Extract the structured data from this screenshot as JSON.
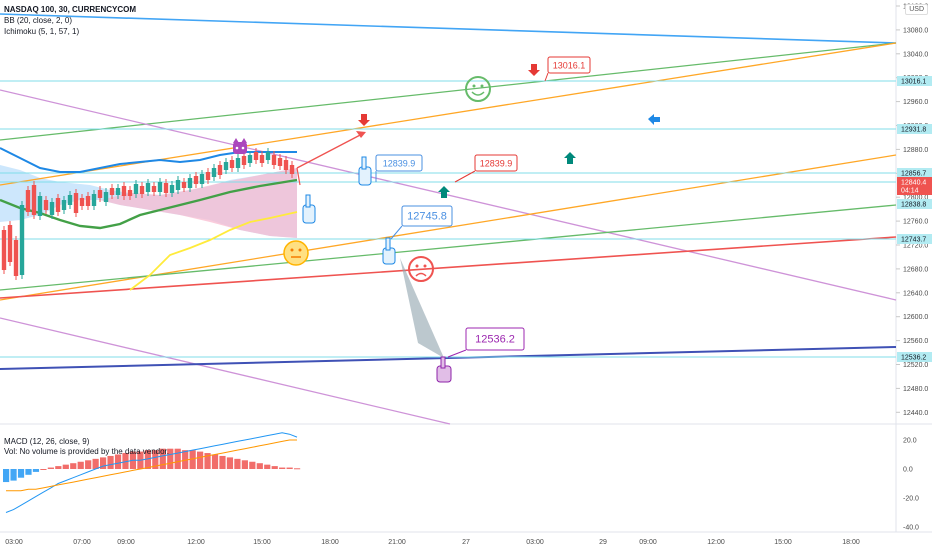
{
  "header": {
    "symbol": "NASDAQ 100, 30, CURRENCYCOM",
    "bb": "BB (20, close, 2, 0)",
    "ichimoku": "Ichimoku (5, 1, 57, 1)",
    "currency": "USD"
  },
  "macd_header": {
    "title": "MACD (12, 26, close, 9)",
    "vol": "Vol: No volume is provided by the data vendor."
  },
  "chart_data": {
    "type": "line",
    "main_panel": {
      "y_axis": {
        "ticks": [
          "13120.0",
          "13080.0",
          "13040.0",
          "13000.0",
          "12960.0",
          "12920.0",
          "12880.0",
          "12840.0",
          "12800.0",
          "12760.0",
          "12720.0",
          "12680.0",
          "12640.0",
          "12600.0",
          "12560.0",
          "12520.0",
          "12480.0",
          "12440.0"
        ]
      },
      "price_tags": [
        {
          "label": "13016.1",
          "color": "#b2ebf2",
          "text_color": "#131722"
        },
        {
          "label": "12931.8",
          "color": "#b2ebf2",
          "text_color": "#131722"
        },
        {
          "label": "12856.7",
          "color": "#b2ebf2",
          "text_color": "#131722"
        },
        {
          "label": "12840.4",
          "sub": "04:14",
          "color": "#ef5350",
          "text_color": "#ffffff"
        },
        {
          "label": "12838.8",
          "color": "#b2ebf2",
          "text_color": "#131722"
        },
        {
          "label": "12743.7",
          "color": "#b2ebf2",
          "text_color": "#131722"
        },
        {
          "label": "12536.2",
          "color": "#b2ebf2",
          "text_color": "#131722"
        }
      ],
      "callouts": [
        {
          "label": "13016.1",
          "color": "#e53935"
        },
        {
          "label": "12839.9",
          "color": "#e53935"
        },
        {
          "label": "12839.9",
          "color": "#4a90e2"
        },
        {
          "label": "12745.8",
          "color": "#4a90e2"
        },
        {
          "label": "12536.2",
          "color": "#9c27b0"
        }
      ]
    },
    "macd_panel": {
      "y_axis": {
        "ticks": [
          "20.0",
          "0.0",
          "-20.0",
          "-40.0"
        ]
      },
      "histogram": [
        -9,
        -8,
        -6,
        -4,
        -2,
        0,
        1,
        2,
        3,
        4,
        5,
        6,
        7,
        8,
        9,
        10,
        11,
        12,
        12,
        13,
        13,
        14,
        14,
        14,
        13,
        13,
        12,
        11,
        10,
        9,
        8,
        7,
        6,
        5,
        4,
        3,
        2,
        1,
        1,
        0.5
      ],
      "macd": [
        -30,
        -28,
        -25,
        -22,
        -19,
        -16,
        -13,
        -10,
        -8,
        -6,
        -4,
        -2,
        0,
        2,
        3,
        4,
        5,
        6,
        6,
        7,
        8,
        9,
        10,
        11,
        12,
        13,
        14,
        15,
        16,
        17,
        18,
        19,
        20,
        21,
        22,
        23,
        24,
        25,
        24,
        22
      ],
      "signal": [
        -15,
        -15,
        -15,
        -14,
        -14,
        -13,
        -12,
        -11,
        -10,
        -9,
        -8,
        -7,
        -6,
        -5,
        -4,
        -3,
        -2,
        -1,
        0,
        1,
        2,
        3,
        4,
        5,
        6,
        7,
        8,
        9,
        10,
        11,
        12,
        13,
        14,
        15,
        16,
        17,
        18,
        19,
        20,
        20
      ]
    },
    "x_axis": {
      "ticks": [
        "03:00",
        "07:00",
        "09:00",
        "12:00",
        "15:00",
        "18:00",
        "21:00",
        "27",
        "03:00",
        "29",
        "09:00",
        "12:00",
        "15:00",
        "18:00"
      ]
    },
    "colors": {
      "up": "#26a69a",
      "down": "#ef5350",
      "bb": "#2196f3",
      "ma": "#4caf50",
      "yellow": "#ffeb3b"
    }
  }
}
